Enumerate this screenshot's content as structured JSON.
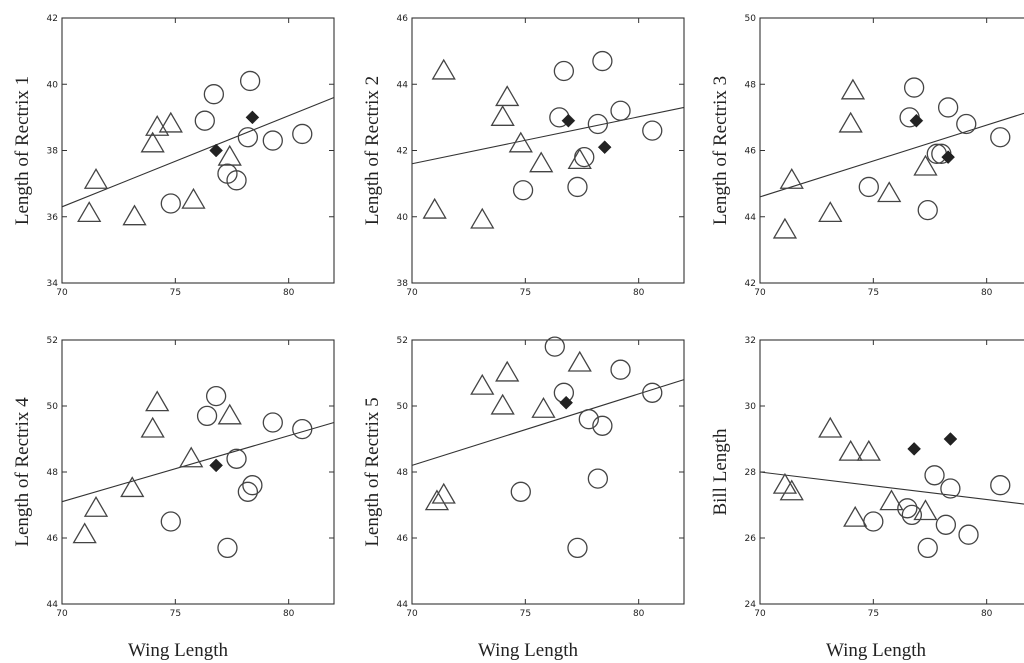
{
  "chart_data": [
    {
      "type": "scatter",
      "xlabel": "",
      "ylabel": "Length of Rectrix 1",
      "xlim": [
        70,
        82
      ],
      "ylim": [
        34,
        42
      ],
      "xticks": [
        "70",
        "75",
        "80"
      ],
      "yticks": [
        "34",
        "36",
        "38",
        "40",
        "42"
      ],
      "series": [
        {
          "marker": "circle",
          "points": [
            [
              74.8,
              36.4
            ],
            [
              76.7,
              39.7
            ],
            [
              76.3,
              38.9
            ],
            [
              77.3,
              37.3
            ],
            [
              77.7,
              37.1
            ],
            [
              78.3,
              40.1
            ],
            [
              78.2,
              38.4
            ],
            [
              79.3,
              38.3
            ],
            [
              80.6,
              38.5
            ]
          ]
        },
        {
          "marker": "triangle",
          "points": [
            [
              71.2,
              36.1
            ],
            [
              71.5,
              37.1
            ],
            [
              73.2,
              36.0
            ],
            [
              74.0,
              38.2
            ],
            [
              74.2,
              38.7
            ],
            [
              74.8,
              38.8
            ],
            [
              75.8,
              36.5
            ],
            [
              77.4,
              37.8
            ]
          ]
        },
        {
          "marker": "diamond",
          "points": [
            [
              76.8,
              38.0
            ],
            [
              78.4,
              39.0
            ]
          ]
        }
      ],
      "fit_line": [
        [
          70,
          36.3
        ],
        [
          82,
          39.6
        ]
      ]
    },
    {
      "type": "scatter",
      "xlabel": "",
      "ylabel": "Length of Rectrix 2",
      "xlim": [
        70,
        82
      ],
      "ylim": [
        38,
        46
      ],
      "xticks": [
        "70",
        "75",
        "80"
      ],
      "yticks": [
        "38",
        "40",
        "42",
        "44",
        "46"
      ],
      "series": [
        {
          "marker": "circle",
          "points": [
            [
              74.9,
              40.8
            ],
            [
              76.5,
              43.0
            ],
            [
              76.7,
              44.4
            ],
            [
              77.3,
              40.9
            ],
            [
              77.6,
              41.8
            ],
            [
              78.2,
              42.8
            ],
            [
              78.4,
              44.7
            ],
            [
              79.2,
              43.2
            ],
            [
              80.6,
              42.6
            ]
          ]
        },
        {
          "marker": "triangle",
          "points": [
            [
              71.0,
              40.2
            ],
            [
              71.4,
              44.4
            ],
            [
              73.1,
              39.9
            ],
            [
              74.0,
              43.0
            ],
            [
              74.2,
              43.6
            ],
            [
              74.8,
              42.2
            ],
            [
              75.7,
              41.6
            ],
            [
              77.4,
              41.7
            ]
          ]
        },
        {
          "marker": "diamond",
          "points": [
            [
              76.9,
              42.9
            ],
            [
              78.5,
              42.1
            ]
          ]
        }
      ],
      "fit_line": [
        [
          70,
          41.6
        ],
        [
          82,
          43.3
        ]
      ]
    },
    {
      "type": "scatter",
      "xlabel": "",
      "ylabel": "Length of Rectrix 3",
      "xlim": [
        70,
        82
      ],
      "ylim": [
        42,
        50
      ],
      "xticks": [
        "70",
        "75",
        "80"
      ],
      "yticks": [
        "42",
        "44",
        "46",
        "48",
        "50"
      ],
      "series": [
        {
          "marker": "circle",
          "points": [
            [
              74.8,
              44.9
            ],
            [
              76.6,
              47.0
            ],
            [
              76.8,
              47.9
            ],
            [
              77.4,
              44.2
            ],
            [
              77.8,
              45.9
            ],
            [
              78.0,
              45.9
            ],
            [
              78.3,
              47.3
            ],
            [
              79.1,
              46.8
            ],
            [
              80.6,
              46.4
            ]
          ]
        },
        {
          "marker": "triangle",
          "points": [
            [
              71.1,
              43.6
            ],
            [
              71.4,
              45.1
            ],
            [
              73.1,
              44.1
            ],
            [
              74.0,
              46.8
            ],
            [
              74.1,
              47.8
            ],
            [
              75.7,
              44.7
            ],
            [
              77.3,
              45.5
            ]
          ]
        },
        {
          "marker": "diamond",
          "points": [
            [
              76.9,
              46.9
            ],
            [
              78.3,
              45.8
            ]
          ]
        }
      ],
      "fit_line": [
        [
          70,
          44.6
        ],
        [
          82,
          47.2
        ]
      ]
    },
    {
      "type": "scatter",
      "xlabel": "Wing Length",
      "ylabel": "Length of Rectrix 4",
      "xlim": [
        70,
        82
      ],
      "ylim": [
        44,
        52
      ],
      "xticks": [
        "70",
        "75",
        "80"
      ],
      "yticks": [
        "44",
        "46",
        "48",
        "50",
        "52"
      ],
      "series": [
        {
          "marker": "circle",
          "points": [
            [
              74.8,
              46.5
            ],
            [
              76.4,
              49.7
            ],
            [
              76.8,
              50.3
            ],
            [
              77.3,
              45.7
            ],
            [
              77.7,
              48.4
            ],
            [
              78.2,
              47.4
            ],
            [
              78.4,
              47.6
            ],
            [
              79.3,
              49.5
            ],
            [
              80.6,
              49.3
            ]
          ]
        },
        {
          "marker": "triangle",
          "points": [
            [
              71.0,
              46.1
            ],
            [
              71.5,
              46.9
            ],
            [
              73.1,
              47.5
            ],
            [
              74.0,
              49.3
            ],
            [
              74.2,
              50.1
            ],
            [
              75.7,
              48.4
            ],
            [
              77.4,
              49.7
            ]
          ]
        },
        {
          "marker": "diamond",
          "points": [
            [
              76.8,
              48.2
            ]
          ]
        }
      ],
      "fit_line": [
        [
          70,
          47.1
        ],
        [
          82,
          49.5
        ]
      ]
    },
    {
      "type": "scatter",
      "xlabel": "Wing Length",
      "ylabel": "Length of Rectrix 5",
      "xlim": [
        70,
        82
      ],
      "ylim": [
        44,
        52
      ],
      "xticks": [
        "70",
        "75",
        "80"
      ],
      "yticks": [
        "44",
        "46",
        "48",
        "50",
        "52"
      ],
      "series": [
        {
          "marker": "circle",
          "points": [
            [
              74.8,
              47.4
            ],
            [
              76.3,
              51.8
            ],
            [
              76.7,
              50.4
            ],
            [
              77.3,
              45.7
            ],
            [
              77.8,
              49.6
            ],
            [
              78.2,
              47.8
            ],
            [
              78.4,
              49.4
            ],
            [
              79.2,
              51.1
            ],
            [
              80.6,
              50.4
            ]
          ]
        },
        {
          "marker": "triangle",
          "points": [
            [
              71.1,
              47.1
            ],
            [
              71.4,
              47.3
            ],
            [
              73.1,
              50.6
            ],
            [
              74.0,
              50.0
            ],
            [
              74.2,
              51.0
            ],
            [
              75.8,
              49.9
            ],
            [
              77.4,
              51.3
            ]
          ]
        },
        {
          "marker": "diamond",
          "points": [
            [
              76.8,
              50.1
            ]
          ]
        }
      ],
      "fit_line": [
        [
          70,
          48.2
        ],
        [
          82,
          50.8
        ]
      ]
    },
    {
      "type": "scatter",
      "xlabel": "Wing Length",
      "ylabel": "Bill Length",
      "xlim": [
        70,
        82
      ],
      "ylim": [
        24,
        32
      ],
      "xticks": [
        "70",
        "75",
        "80"
      ],
      "yticks": [
        "24",
        "26",
        "28",
        "30",
        "32"
      ],
      "ytick_labels_shown": [
        "24",
        "26",
        "28",
        "30",
        "32"
      ],
      "series": [
        {
          "marker": "circle",
          "points": [
            [
              75.0,
              26.5
            ],
            [
              76.5,
              26.9
            ],
            [
              76.7,
              26.7
            ],
            [
              77.4,
              25.7
            ],
            [
              77.7,
              27.9
            ],
            [
              78.2,
              26.4
            ],
            [
              78.4,
              27.5
            ],
            [
              79.2,
              26.1
            ],
            [
              80.6,
              27.6
            ]
          ]
        },
        {
          "marker": "triangle",
          "points": [
            [
              71.1,
              27.6
            ],
            [
              71.4,
              27.4
            ],
            [
              73.1,
              29.3
            ],
            [
              74.0,
              28.6
            ],
            [
              74.2,
              26.6
            ],
            [
              74.8,
              28.6
            ],
            [
              75.8,
              27.1
            ],
            [
              77.3,
              26.8
            ]
          ]
        },
        {
          "marker": "diamond",
          "points": [
            [
              76.8,
              28.7
            ],
            [
              78.4,
              29.0
            ]
          ]
        }
      ],
      "fit_line": [
        [
          70,
          28.0
        ],
        [
          82,
          27.0
        ]
      ]
    }
  ]
}
